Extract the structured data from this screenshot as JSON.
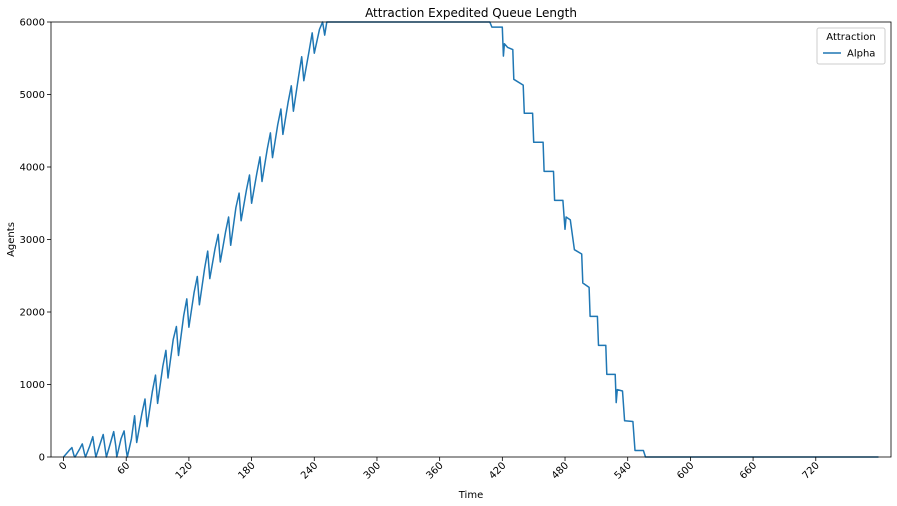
{
  "chart_data": {
    "type": "line",
    "title": "Attraction Expedited Queue Length",
    "xlabel": "Time",
    "ylabel": "Agents",
    "xlim": [
      -12,
      792
    ],
    "ylim": [
      0,
      6000
    ],
    "x_ticks": [
      0,
      60,
      120,
      180,
      240,
      300,
      360,
      420,
      480,
      540,
      600,
      660,
      720
    ],
    "x_tick_labels": [
      "0",
      "60",
      "120",
      "180",
      "240",
      "300",
      "360",
      "420",
      "480",
      "540",
      "600",
      "660",
      "720"
    ],
    "y_ticks": [
      0,
      1000,
      2000,
      3000,
      4000,
      5000,
      6000
    ],
    "y_tick_labels": [
      "0",
      "1000",
      "2000",
      "3000",
      "4000",
      "5000",
      "6000"
    ],
    "grid": false,
    "legend": {
      "title": "Attraction",
      "placement": "top-right"
    },
    "series": [
      {
        "name": "Alpha",
        "color": "#1f77b4",
        "points": [
          [
            0,
            0
          ],
          [
            6,
            100
          ],
          [
            8,
            130
          ],
          [
            10,
            20
          ],
          [
            11,
            0
          ],
          [
            15,
            100
          ],
          [
            18,
            180
          ],
          [
            20,
            50
          ],
          [
            21,
            0
          ],
          [
            25,
            150
          ],
          [
            28,
            280
          ],
          [
            30,
            80
          ],
          [
            31,
            0
          ],
          [
            35,
            180
          ],
          [
            38,
            310
          ],
          [
            40,
            100
          ],
          [
            41,
            0
          ],
          [
            45,
            200
          ],
          [
            48,
            350
          ],
          [
            50,
            150
          ],
          [
            51,
            0
          ],
          [
            55,
            250
          ],
          [
            58,
            360
          ],
          [
            60,
            100
          ],
          [
            61,
            0
          ],
          [
            65,
            250
          ],
          [
            68,
            570
          ],
          [
            70,
            200
          ],
          [
            75,
            600
          ],
          [
            78,
            800
          ],
          [
            80,
            420
          ],
          [
            85,
            900
          ],
          [
            88,
            1130
          ],
          [
            90,
            740
          ],
          [
            95,
            1250
          ],
          [
            98,
            1470
          ],
          [
            100,
            1090
          ],
          [
            105,
            1620
          ],
          [
            108,
            1800
          ],
          [
            110,
            1400
          ],
          [
            115,
            1950
          ],
          [
            118,
            2180
          ],
          [
            120,
            1790
          ],
          [
            125,
            2270
          ],
          [
            128,
            2490
          ],
          [
            130,
            2100
          ],
          [
            135,
            2600
          ],
          [
            138,
            2840
          ],
          [
            140,
            2460
          ],
          [
            145,
            2870
          ],
          [
            148,
            3070
          ],
          [
            150,
            2690
          ],
          [
            155,
            3100
          ],
          [
            158,
            3310
          ],
          [
            160,
            2920
          ],
          [
            165,
            3440
          ],
          [
            168,
            3640
          ],
          [
            170,
            3260
          ],
          [
            175,
            3680
          ],
          [
            178,
            3890
          ],
          [
            180,
            3500
          ],
          [
            185,
            3910
          ],
          [
            188,
            4140
          ],
          [
            190,
            3800
          ],
          [
            195,
            4250
          ],
          [
            198,
            4470
          ],
          [
            200,
            4130
          ],
          [
            205,
            4580
          ],
          [
            208,
            4800
          ],
          [
            210,
            4450
          ],
          [
            215,
            4900
          ],
          [
            218,
            5120
          ],
          [
            220,
            4770
          ],
          [
            225,
            5250
          ],
          [
            228,
            5520
          ],
          [
            230,
            5190
          ],
          [
            235,
            5600
          ],
          [
            238,
            5850
          ],
          [
            240,
            5570
          ],
          [
            245,
            5900
          ],
          [
            248,
            6000
          ],
          [
            250,
            5820
          ],
          [
            252,
            6000
          ],
          [
            408,
            6000
          ],
          [
            410,
            5930
          ],
          [
            420,
            5930
          ],
          [
            421,
            5530
          ],
          [
            422,
            5700
          ],
          [
            425,
            5650
          ],
          [
            430,
            5620
          ],
          [
            431,
            5210
          ],
          [
            440,
            5130
          ],
          [
            441,
            4740
          ],
          [
            449,
            4740
          ],
          [
            450,
            4340
          ],
          [
            459,
            4340
          ],
          [
            460,
            3940
          ],
          [
            469,
            3940
          ],
          [
            470,
            3540
          ],
          [
            478,
            3540
          ],
          [
            479,
            3330
          ],
          [
            480,
            3140
          ],
          [
            481,
            3310
          ],
          [
            485,
            3270
          ],
          [
            489,
            2860
          ],
          [
            496,
            2800
          ],
          [
            497,
            2400
          ],
          [
            503,
            2340
          ],
          [
            504,
            1940
          ],
          [
            511,
            1940
          ],
          [
            512,
            1540
          ],
          [
            519,
            1540
          ],
          [
            520,
            1140
          ],
          [
            528,
            1140
          ],
          [
            529,
            750
          ],
          [
            530,
            930
          ],
          [
            535,
            910
          ],
          [
            537,
            500
          ],
          [
            545,
            490
          ],
          [
            547,
            90
          ],
          [
            555,
            90
          ],
          [
            557,
            0
          ],
          [
            780,
            0
          ]
        ]
      }
    ]
  }
}
